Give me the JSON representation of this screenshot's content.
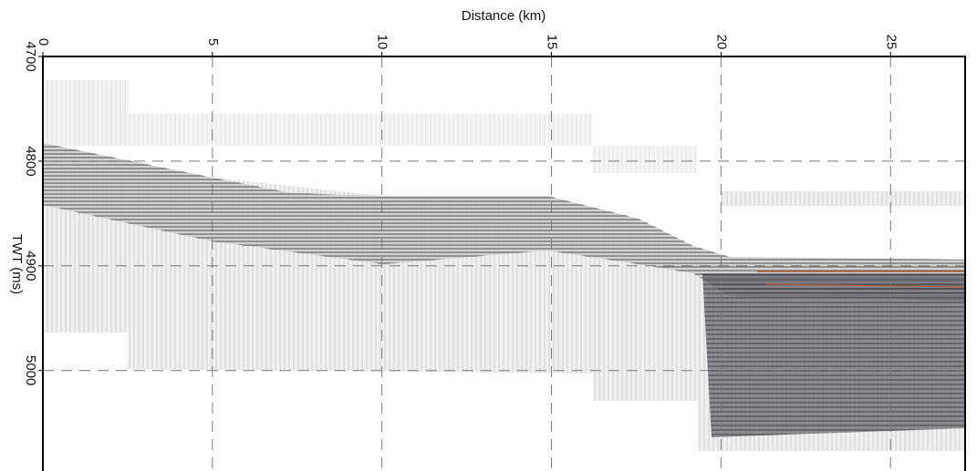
{
  "chart_data": {
    "type": "seismic-section",
    "x_label": "Distance (km)",
    "y_label": "TWT (ms)",
    "xlim": [
      0,
      27.2
    ],
    "xticks": [
      0,
      5,
      10,
      15,
      20,
      25
    ],
    "ylim": [
      4700,
      5096
    ],
    "yticks": [
      4700,
      4800,
      4900,
      5000
    ],
    "y_inverted": true,
    "grid": true
  }
}
